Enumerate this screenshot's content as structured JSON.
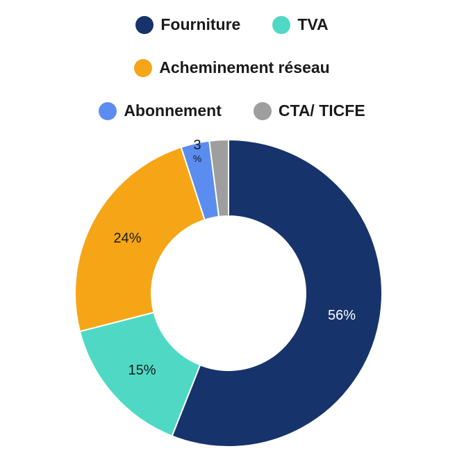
{
  "chart_data": {
    "type": "pie",
    "variant": "donut",
    "title": "",
    "legend_position": "top",
    "categories": [
      "Fourniture",
      "TVA",
      "Acheminement réseau",
      "Abonnement",
      "CTA/ TICFE"
    ],
    "values": [
      56,
      15,
      24,
      3,
      2
    ],
    "colors": [
      "#17336b",
      "#4fd9c5",
      "#f5a516",
      "#5b8df0",
      "#9e9e9e"
    ],
    "labels": [
      "56%",
      "15%",
      "24%",
      "3 %",
      ""
    ],
    "label_colors": [
      "#ffffff",
      "#1a1a1a",
      "#1a1a1a",
      "#1a1a1a",
      "#1a1a1a"
    ]
  }
}
